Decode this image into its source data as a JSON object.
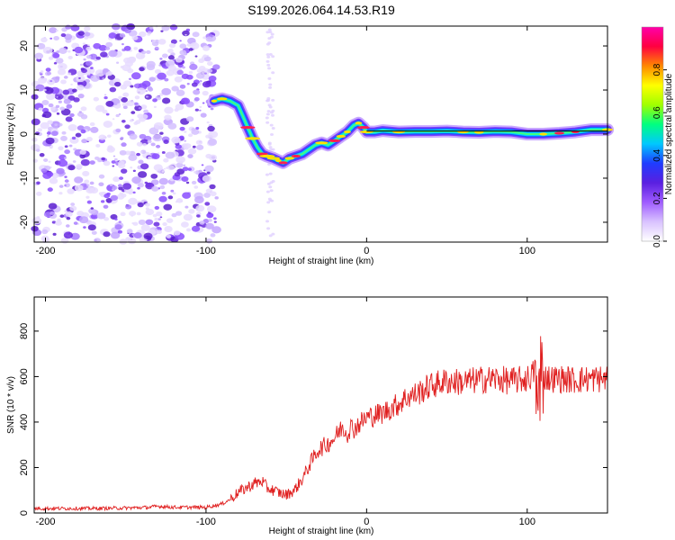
{
  "figure_title": "S199.2026.064.14.53.R19",
  "chart_data": [
    {
      "type": "heatmap",
      "title": "S199.2026.064.14.53.R19",
      "xlabel": "Height of straight line (km)",
      "ylabel": "Frequency (Hz)",
      "xlim": [
        -207,
        150
      ],
      "ylim": [
        -24.5,
        24.5
      ],
      "xticks": [
        -200,
        -100,
        0,
        100
      ],
      "yticks": [
        -20,
        -10,
        0,
        10,
        20
      ],
      "grid": false,
      "colorbar": {
        "label": "Normalized spectral amplitude",
        "range": [
          0.0,
          1.0
        ],
        "ticks": [
          "0.0",
          "0.2",
          "0.4",
          "0.6",
          "0.8"
        ],
        "tick_values": [
          0.0,
          0.2,
          0.4,
          0.6,
          0.8
        ],
        "colors": [
          "#ffffff",
          "#d9c2ff",
          "#9f5cff",
          "#5a1fe0",
          "#1f3cff",
          "#00c8ff",
          "#00ff80",
          "#a0ff00",
          "#ffff00",
          "#ff8800",
          "#ff0040",
          "#ff00aa"
        ]
      },
      "trace": {
        "name": "dominant frequency ridge",
        "x": [
          -95,
          -90,
          -85,
          -80,
          -77,
          -74,
          -71,
          -68,
          -65,
          -62,
          -58,
          -55,
          -52,
          -48,
          -44,
          -40,
          -36,
          -32,
          -28,
          -24,
          -20,
          -16,
          -12,
          -8,
          -5,
          -2,
          0,
          5,
          10,
          20,
          30,
          40,
          50,
          60,
          70,
          80,
          90,
          100,
          110,
          120,
          130,
          140,
          150
        ],
        "y": [
          7.5,
          8,
          7.5,
          6.5,
          4,
          1.5,
          -1,
          -3,
          -4.5,
          -5,
          -5.5,
          -6,
          -6.5,
          -5.5,
          -5,
          -4.5,
          -3.5,
          -2.5,
          -2,
          -2.5,
          -1.5,
          -0.5,
          0.5,
          2,
          2.5,
          1.5,
          0.5,
          0.5,
          0.8,
          0.5,
          0.6,
          0.6,
          0.7,
          0.5,
          0.4,
          0.6,
          0.5,
          0,
          0,
          0.2,
          0.5,
          1,
          1
        ]
      },
      "reference_line": {
        "y": 0.7,
        "x_start": 0,
        "x_end": 150
      }
    },
    {
      "type": "line",
      "title": "",
      "xlabel": "Height of straight line (km)",
      "ylabel": "SNR (10 * v/v)",
      "xlim": [
        -207,
        150
      ],
      "ylim": [
        0,
        950
      ],
      "xticks": [
        -200,
        -100,
        0,
        100
      ],
      "yticks": [
        0,
        200,
        400,
        600,
        800
      ],
      "grid": false,
      "series": [
        {
          "name": "SNR",
          "color": "#e02020",
          "x": [
            -207,
            -190,
            -170,
            -150,
            -135,
            -130,
            -120,
            -100,
            -90,
            -85,
            -80,
            -75,
            -70,
            -65,
            -62,
            -58,
            -55,
            -50,
            -45,
            -40,
            -35,
            -30,
            -25,
            -20,
            -15,
            -12,
            -10,
            -8,
            -5,
            0,
            5,
            10,
            15,
            20,
            25,
            30,
            35,
            40,
            50,
            60,
            70,
            80,
            90,
            100,
            105,
            107,
            108,
            110,
            115,
            120,
            130,
            140,
            150
          ],
          "y": [
            20,
            20,
            20,
            22,
            25,
            30,
            25,
            25,
            40,
            60,
            90,
            110,
            130,
            140,
            110,
            100,
            90,
            80,
            100,
            150,
            220,
            280,
            300,
            330,
            380,
            350,
            380,
            370,
            390,
            420,
            430,
            440,
            460,
            480,
            510,
            520,
            540,
            560,
            580,
            575,
            585,
            590,
            580,
            590,
            620,
            450,
            660,
            600,
            590,
            590,
            585,
            590,
            590
          ],
          "noise_amplitude": 30
        }
      ]
    }
  ]
}
